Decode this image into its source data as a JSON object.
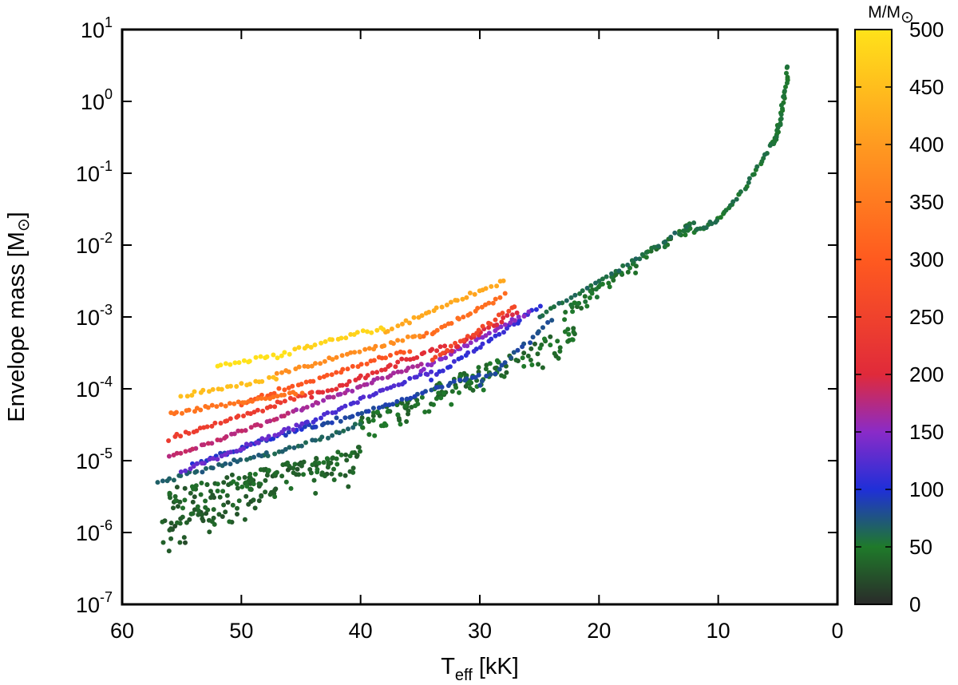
{
  "chart_data": {
    "type": "scatter",
    "xlabel": {
      "main": "T",
      "sub": "eff",
      "unit": " [kK]"
    },
    "ylabel": {
      "main": "Envelope mass [M",
      "sym": "⊙",
      "close": "]"
    },
    "xlim": [
      60,
      0
    ],
    "x_reversed": true,
    "x_ticks": [
      60,
      50,
      40,
      30,
      20,
      10,
      0
    ],
    "ylim": [
      1e-07,
      10
    ],
    "y_scale": "log",
    "y_ticks": [
      {
        "base": "10",
        "exp": "-7"
      },
      {
        "base": "10",
        "exp": "-6"
      },
      {
        "base": "10",
        "exp": "-5"
      },
      {
        "base": "10",
        "exp": "-4"
      },
      {
        "base": "10",
        "exp": "-3"
      },
      {
        "base": "10",
        "exp": "-2"
      },
      {
        "base": "10",
        "exp": "-1"
      },
      {
        "base": "10",
        "exp": "0"
      },
      {
        "base": "10",
        "exp": "1"
      }
    ],
    "grid": false,
    "colorbar": {
      "title_main": "M/M",
      "title_sym": "⊙",
      "range": [
        0,
        500
      ],
      "ticks": [
        0,
        50,
        100,
        150,
        200,
        250,
        300,
        350,
        400,
        450,
        500
      ],
      "colors": [
        [
          0,
          "#2a2a2a"
        ],
        [
          50,
          "#1f7a2a"
        ],
        [
          100,
          "#1f2fd8"
        ],
        [
          150,
          "#8a2bc8"
        ],
        [
          200,
          "#e02a3a"
        ],
        [
          300,
          "#ff5a1f"
        ],
        [
          400,
          "#ff9a20"
        ],
        [
          500,
          "#ffe21a"
        ]
      ]
    },
    "series_tracks": [
      {
        "mass": 500,
        "t_start": 52.0,
        "t_end": 46.0,
        "logm_start": -3.7,
        "logm_end": -3.5,
        "n": 18
      },
      {
        "mass": 480,
        "t_start": 45.5,
        "t_end": 38.0,
        "logm_start": -3.45,
        "logm_end": -3.15,
        "n": 22
      },
      {
        "mass": 450,
        "t_start": 55.0,
        "t_end": 47.0,
        "logm_start": -4.1,
        "logm_end": -3.85,
        "n": 22
      },
      {
        "mass": 420,
        "t_start": 38.0,
        "t_end": 28.0,
        "logm_start": -3.2,
        "logm_end": -2.5,
        "n": 30
      },
      {
        "mass": 380,
        "t_start": 47.0,
        "t_end": 35.0,
        "logm_start": -3.8,
        "logm_end": -3.25,
        "n": 34
      },
      {
        "mass": 340,
        "t_start": 56.0,
        "t_end": 45.0,
        "logm_start": -4.35,
        "logm_end": -4.05,
        "n": 34
      },
      {
        "mass": 330,
        "t_start": 35.0,
        "t_end": 28.0,
        "logm_start": -3.3,
        "logm_end": -2.7,
        "n": 24
      },
      {
        "mass": 290,
        "t_start": 50.0,
        "t_end": 36.0,
        "logm_start": -4.2,
        "logm_end": -3.45,
        "n": 40
      },
      {
        "mass": 260,
        "t_start": 34.0,
        "t_end": 27.0,
        "logm_start": -3.6,
        "logm_end": -2.85,
        "n": 22
      },
      {
        "mass": 240,
        "t_start": 56.0,
        "t_end": 44.0,
        "logm_start": -4.7,
        "logm_end": -4.05,
        "n": 38
      },
      {
        "mass": 210,
        "t_start": 44.0,
        "t_end": 33.0,
        "logm_start": -4.1,
        "logm_end": -3.4,
        "n": 36
      },
      {
        "mass": 200,
        "t_start": 33.0,
        "t_end": 27.0,
        "logm_start": -3.5,
        "logm_end": -2.95,
        "n": 20
      },
      {
        "mass": 180,
        "t_start": 56.0,
        "t_end": 46.0,
        "logm_start": -4.95,
        "logm_end": -4.35,
        "n": 32
      },
      {
        "mass": 165,
        "t_start": 46.0,
        "t_end": 35.0,
        "logm_start": -4.35,
        "logm_end": -3.65,
        "n": 36
      },
      {
        "mass": 150,
        "t_start": 35.0,
        "t_end": 26.0,
        "logm_start": -3.75,
        "logm_end": -2.95,
        "n": 30
      },
      {
        "mass": 135,
        "t_start": 55.0,
        "t_end": 45.0,
        "logm_start": -5.15,
        "logm_end": -4.5,
        "n": 32
      },
      {
        "mass": 120,
        "t_start": 45.0,
        "t_end": 34.0,
        "logm_start": -4.5,
        "logm_end": -3.75,
        "n": 36
      },
      {
        "mass": 110,
        "t_start": 34.0,
        "t_end": 25.0,
        "logm_start": -3.85,
        "logm_end": -2.85,
        "n": 30
      },
      {
        "mass": 95,
        "t_start": 54.0,
        "t_end": 44.0,
        "logm_start": -5.05,
        "logm_end": -4.5,
        "n": 32
      },
      {
        "mass": 85,
        "t_start": 44.0,
        "t_end": 30.0,
        "logm_start": -4.55,
        "logm_end": -3.8,
        "n": 42
      },
      {
        "mass": 80,
        "t_start": 30.0,
        "t_end": 24.0,
        "logm_start": -3.95,
        "logm_end": -3.05,
        "n": 20
      },
      {
        "mass": 70,
        "t_start": 57.0,
        "t_end": 48.0,
        "logm_start": -5.3,
        "logm_end": -4.9,
        "n": 28
      },
      {
        "mass": 65,
        "t_start": 48.0,
        "t_end": 40.0,
        "logm_start": -4.95,
        "logm_end": -4.5,
        "n": 24
      },
      {
        "mass": 60,
        "t_start": 25.0,
        "t_end": 12.0,
        "logm_start": -3.0,
        "logm_end": -1.7,
        "n": 40
      },
      {
        "mass": 55,
        "t_start": 12.0,
        "t_end": 5.5,
        "logm_start": -1.8,
        "logm_end": -0.6,
        "n": 40
      },
      {
        "mass": 50,
        "t_start": 5.5,
        "t_end": 4.1,
        "logm_start": -0.6,
        "logm_end": 0.5,
        "n": 40
      }
    ],
    "scatter_clouds": [
      {
        "mass": 35,
        "t_min": 40.0,
        "t_max": 56.5,
        "logm_at_tmin": -4.95,
        "logm_at_tmax": -5.55,
        "spread": 0.6,
        "n": 160
      },
      {
        "mass": 40,
        "t_min": 22.0,
        "t_max": 40.0,
        "logm_at_tmin": -3.25,
        "logm_at_tmax": -4.5,
        "spread": 0.5,
        "n": 150
      },
      {
        "mass": 30,
        "t_min": 47.0,
        "t_max": 57.0,
        "logm_at_tmin": -5.5,
        "logm_at_tmax": -6.0,
        "spread": 0.55,
        "n": 60
      },
      {
        "mass": 45,
        "t_min": 12.0,
        "t_max": 23.0,
        "logm_at_tmin": -1.7,
        "logm_at_tmax": -2.95,
        "spread": 0.22,
        "n": 60
      }
    ]
  }
}
